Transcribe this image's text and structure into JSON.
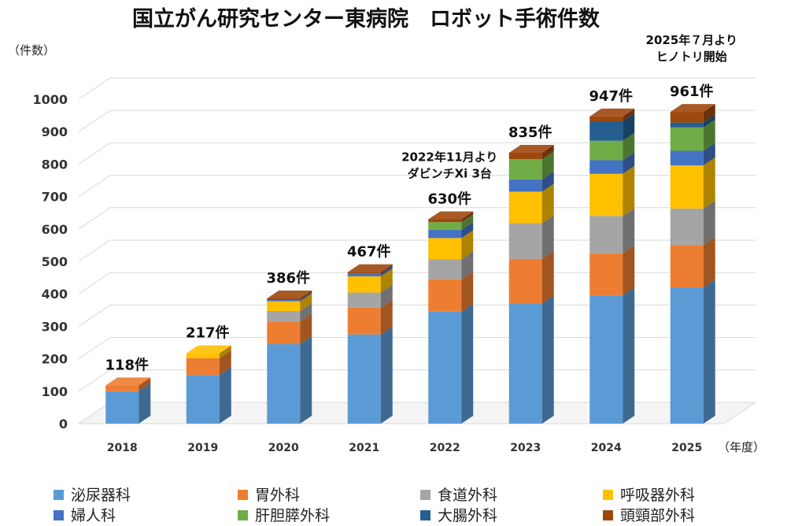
{
  "chart_data": {
    "type": "bar",
    "stacked": true,
    "title": "国立がん研究センター東病院　ロボット手術件数",
    "ylabel": "（件数）",
    "xlabel": "（年度）",
    "ylim": [
      0,
      1000
    ],
    "yticks": [
      "0",
      "100",
      "200",
      "300",
      "400",
      "500",
      "600",
      "700",
      "800",
      "900",
      "1000"
    ],
    "grid": true,
    "legend_position": "bottom",
    "categories": [
      "2018",
      "2019",
      "2020",
      "2021",
      "2022",
      "2023",
      "2024",
      "2025"
    ],
    "series": [
      {
        "name": "泌尿器科",
        "color": "#5B9BD5",
        "values": [
          100,
          150,
          245,
          275,
          345,
          370,
          395,
          420
        ]
      },
      {
        "name": "胃外科",
        "color": "#ED7D31",
        "values": [
          18,
          52,
          70,
          82,
          100,
          138,
          130,
          130
        ]
      },
      {
        "name": "食道外科",
        "color": "#A5A5A5",
        "values": [
          0,
          0,
          32,
          47,
          62,
          110,
          115,
          113
        ]
      },
      {
        "name": "呼吸器外科",
        "color": "#FFC000",
        "values": [
          0,
          15,
          30,
          50,
          65,
          97,
          130,
          133
        ]
      },
      {
        "name": "婦人科",
        "color": "#4472C4",
        "values": [
          0,
          0,
          4,
          8,
          25,
          38,
          42,
          45
        ]
      },
      {
        "name": "肝胆膵外科",
        "color": "#70AD47",
        "values": [
          0,
          0,
          0,
          0,
          24,
          62,
          60,
          72
        ]
      },
      {
        "name": "大腸外科",
        "color": "#255E91",
        "values": [
          0,
          0,
          0,
          0,
          0,
          0,
          60,
          15
        ]
      },
      {
        "name": "頭頸部外科",
        "color": "#9E480E",
        "values": [
          0,
          0,
          5,
          5,
          9,
          20,
          15,
          33
        ]
      }
    ],
    "totals": [
      "118件",
      "217件",
      "386件",
      "467件",
      "630件",
      "835件",
      "947件",
      "961件"
    ],
    "annotations": [
      {
        "category": "2022",
        "lines": [
          "2022年11月より",
          "ダビンチXi 3台"
        ]
      },
      {
        "category": "2025",
        "lines": [
          "2025年７月より",
          "ヒノトリ開始"
        ]
      }
    ]
  }
}
